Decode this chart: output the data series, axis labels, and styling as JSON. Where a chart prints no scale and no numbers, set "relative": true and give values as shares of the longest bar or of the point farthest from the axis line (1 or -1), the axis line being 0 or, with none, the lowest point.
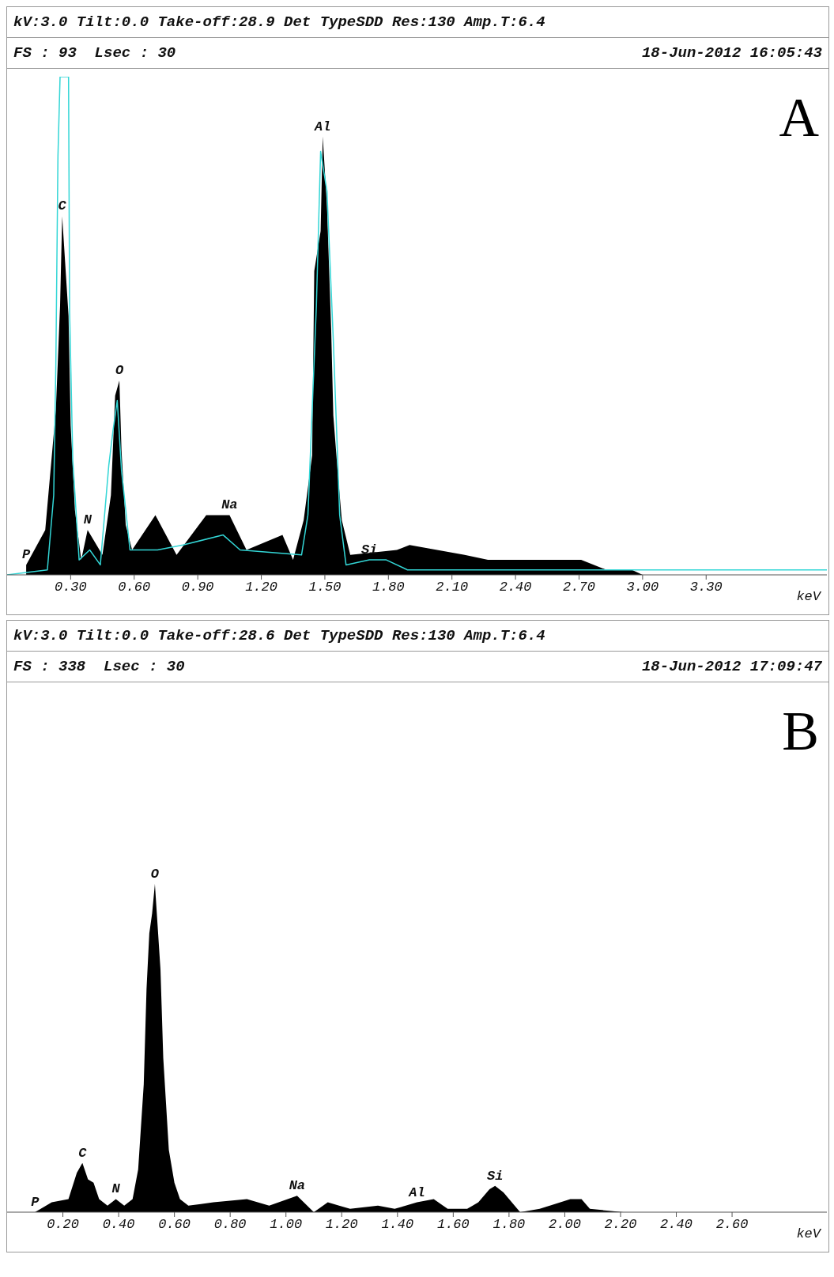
{
  "chart_data": [
    {
      "type": "area",
      "relative": true,
      "title": "kV:3.0 Tilt:0.0 Take-off:28.9   Det TypeSDD Res:130 Amp.T:6.4",
      "xlabel": "keV",
      "xlim": [
        0,
        3.87
      ],
      "xticks": [
        {
          "value": 0.3,
          "label": "0.30"
        },
        {
          "value": 0.6,
          "label": "0.60"
        },
        {
          "value": 0.9,
          "label": "0.90"
        },
        {
          "value": 1.2,
          "label": "1.20"
        },
        {
          "value": 1.5,
          "label": "1.50"
        },
        {
          "value": 1.8,
          "label": "1.80"
        },
        {
          "value": 2.1,
          "label": "2.10"
        },
        {
          "value": 2.4,
          "label": "2.40"
        },
        {
          "value": 2.7,
          "label": "2.70"
        },
        {
          "value": 3.0,
          "label": "3.00"
        },
        {
          "value": 3.3,
          "label": "3.30"
        }
      ],
      "series": [
        {
          "color": "#000000",
          "x": [
            0.09,
            0.18,
            0.23,
            0.25,
            0.26,
            0.29,
            0.3,
            0.32,
            0.35,
            0.38,
            0.45,
            0.49,
            0.51,
            0.53,
            0.54,
            0.56,
            0.59,
            0.7,
            0.8,
            0.94,
            1.05,
            1.13,
            1.3,
            1.35,
            1.4,
            1.44,
            1.45,
            1.48,
            1.49,
            1.51,
            1.53,
            1.54,
            1.56,
            1.58,
            1.62,
            1.84,
            1.9,
            2.16,
            2.27,
            2.71,
            2.83,
            2.95,
            3.0
          ],
          "values": [
            0.02,
            0.09,
            0.33,
            0.54,
            0.72,
            0.52,
            0.3,
            0.13,
            0.03,
            0.09,
            0.04,
            0.16,
            0.36,
            0.39,
            0.25,
            0.1,
            0.05,
            0.12,
            0.04,
            0.12,
            0.12,
            0.05,
            0.08,
            0.03,
            0.11,
            0.24,
            0.61,
            0.69,
            0.88,
            0.74,
            0.49,
            0.32,
            0.21,
            0.11,
            0.04,
            0.05,
            0.06,
            0.04,
            0.03,
            0.03,
            0.01,
            0.01,
            0
          ]
        },
        {
          "type": "line",
          "color": "#33d6d6",
          "x": [
            0,
            0.19,
            0.22,
            0.23,
            0.24,
            0.25,
            0.29,
            0.295,
            0.31,
            0.34,
            0.39,
            0.44,
            0.48,
            0.5,
            0.52,
            0.54,
            0.58,
            0.71,
            0.83,
            1.02,
            1.1,
            1.39,
            1.42,
            1.46,
            1.48,
            1.51,
            1.54,
            1.57,
            1.6,
            1.71,
            1.79,
            1.89,
            3.87
          ],
          "values": [
            0,
            0.01,
            0.16,
            0.42,
            0.84,
            1,
            1,
            0.53,
            0.23,
            0.03,
            0.05,
            0.02,
            0.22,
            0.29,
            0.35,
            0.21,
            0.05,
            0.05,
            0.06,
            0.08,
            0.05,
            0.04,
            0.12,
            0.54,
            0.85,
            0.77,
            0.47,
            0.12,
            0.02,
            0.03,
            0.03,
            0.01,
            0.01
          ]
        }
      ],
      "annotations": [
        "FS : 93  Lsec : 30",
        "18-Jun-2012 16:05:43",
        "A",
        {
          "text": "P",
          "x": 0.09,
          "y": 0.02
        },
        {
          "text": "C",
          "x": 0.26,
          "y": 0.72
        },
        {
          "text": "N",
          "x": 0.38,
          "y": 0.09
        },
        {
          "text": "O",
          "x": 0.53,
          "y": 0.39
        },
        {
          "text": "Na",
          "x": 1.05,
          "y": 0.12
        },
        {
          "text": "Al",
          "x": 1.49,
          "y": 0.88
        },
        {
          "text": "Si",
          "x": 1.71,
          "y": 0.03
        }
      ]
    },
    {
      "type": "area",
      "relative": true,
      "title": "kV:3.0 Tilt:0.0 Take-off:28.6   Det TypeSDD Res:130 Amp.T:6.4",
      "xlabel": "keV",
      "xlim": [
        0,
        2.94
      ],
      "xticks": [
        {
          "value": 0.2,
          "label": "0.20"
        },
        {
          "value": 0.4,
          "label": "0.40"
        },
        {
          "value": 0.6,
          "label": "0.60"
        },
        {
          "value": 0.8,
          "label": "0.80"
        },
        {
          "value": 1.0,
          "label": "1.00"
        },
        {
          "value": 1.2,
          "label": "1.20"
        },
        {
          "value": 1.4,
          "label": "1.40"
        },
        {
          "value": 1.6,
          "label": "1.60"
        },
        {
          "value": 1.8,
          "label": "1.80"
        },
        {
          "value": 2.0,
          "label": "2.00"
        },
        {
          "value": 2.2,
          "label": "2.20"
        },
        {
          "value": 2.4,
          "label": "2.40"
        },
        {
          "value": 2.6,
          "label": "2.60"
        }
      ],
      "series": [
        {
          "color": "#000000",
          "x": [
            0.1,
            0.16,
            0.22,
            0.25,
            0.27,
            0.29,
            0.31,
            0.33,
            0.36,
            0.39,
            0.42,
            0.45,
            0.47,
            0.49,
            0.5,
            0.51,
            0.52,
            0.53,
            0.55,
            0.56,
            0.57,
            0.58,
            0.6,
            0.62,
            0.65,
            0.74,
            0.86,
            0.94,
            1.04,
            1.1,
            1.15,
            1.23,
            1.33,
            1.39,
            1.47,
            1.53,
            1.58,
            1.65,
            1.69,
            1.73,
            1.75,
            1.78,
            1.81,
            1.84,
            1.91,
            2.02,
            2.06,
            2.09,
            2.21,
            2.63,
            2.93
          ],
          "values": [
            0,
            0.03,
            0.04,
            0.12,
            0.15,
            0.1,
            0.09,
            0.04,
            0.02,
            0.04,
            0.02,
            0.04,
            0.13,
            0.39,
            0.68,
            0.85,
            0.91,
            1,
            0.74,
            0.47,
            0.33,
            0.19,
            0.09,
            0.04,
            0.02,
            0.03,
            0.04,
            0.02,
            0.05,
            0,
            0.03,
            0.01,
            0.02,
            0.01,
            0.03,
            0.04,
            0.01,
            0.01,
            0.03,
            0.07,
            0.08,
            0.06,
            0.03,
            0,
            0.01,
            0.04,
            0.04,
            0.01,
            0,
            0,
            0
          ]
        }
      ],
      "annotations": [
        "FS : 338  Lsec : 30",
        "18-Jun-2012 17:09:47",
        "B",
        {
          "text": "P",
          "x": 0.1,
          "y": 0
        },
        {
          "text": "C",
          "x": 0.27,
          "y": 0.15
        },
        {
          "text": "N",
          "x": 0.39,
          "y": 0.04
        },
        {
          "text": "O",
          "x": 0.53,
          "y": 1
        },
        {
          "text": "Na",
          "x": 1.04,
          "y": 0.05
        },
        {
          "text": "Al",
          "x": 1.47,
          "y": 0.03
        },
        {
          "text": "Si",
          "x": 1.75,
          "y": 0.08
        }
      ]
    }
  ]
}
